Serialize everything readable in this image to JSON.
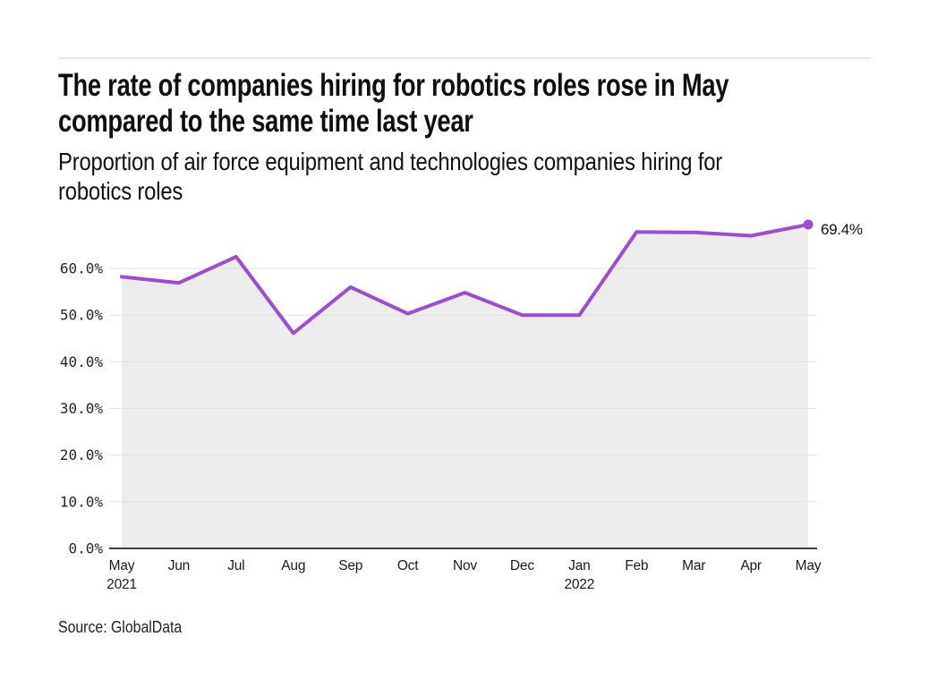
{
  "chart_data": {
    "type": "area",
    "title": "The rate of companies hiring for robotics roles rose in May compared to the same time last year",
    "title_lines": [
      "The rate of companies hiring for robotics roles rose in May",
      "compared to the same time last year"
    ],
    "subtitle": "Proportion of air force equipment and technologies companies hiring for robotics roles",
    "subtitle_lines": [
      "Proportion of air force equipment and technologies companies hiring for",
      "robotics roles"
    ],
    "source": "Source: GlobalData",
    "categories": [
      "May",
      "Jun",
      "Jul",
      "Aug",
      "Sep",
      "Oct",
      "Nov",
      "Dec",
      "Jan",
      "Feb",
      "Mar",
      "Apr",
      "May"
    ],
    "year_markers": [
      {
        "index": 0,
        "label": "2021"
      },
      {
        "index": 8,
        "label": "2022"
      }
    ],
    "values": [
      58.2,
      56.9,
      62.5,
      46.1,
      56.0,
      50.3,
      54.8,
      50.0,
      50.0,
      67.8,
      67.7,
      67.0,
      69.4
    ],
    "unit": "%",
    "ylim": [
      0,
      70
    ],
    "yticks": [
      0,
      10,
      20,
      30,
      40,
      50,
      60
    ],
    "ytick_labels": [
      "0.0%",
      "10.0%",
      "20.0%",
      "30.0%",
      "40.0%",
      "50.0%",
      "60.0%"
    ],
    "end_label": "69.4%",
    "grid": true,
    "legend": "none",
    "colors": {
      "line": "#9b4dd3",
      "area_fill": "#ededed",
      "grid_line": "#e0e0e0",
      "axis_line": "#3f3f3f",
      "text": "#161616"
    }
  }
}
